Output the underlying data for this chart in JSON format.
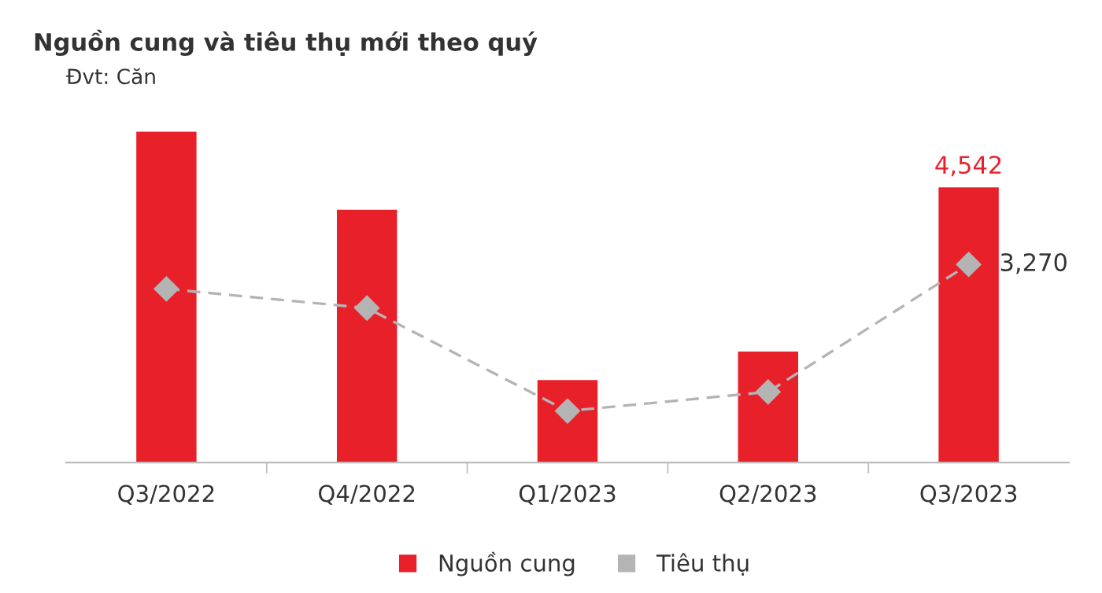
{
  "chart_data": {
    "type": "bar",
    "title": "Nguồn cung và tiêu thụ mới theo quý",
    "subtitle": "Đvt: Căn",
    "categories": [
      "Q3/2022",
      "Q4/2022",
      "Q1/2023",
      "Q2/2023",
      "Q3/2023"
    ],
    "legend": "bottom",
    "grid": false,
    "tick_labels": "x",
    "series": [
      {
        "name": "Nguồn cung",
        "color": "#e8202a",
        "values": [
          5457,
          4172,
          1362,
          1830,
          4542
        ],
        "value_labels": [
          null,
          null,
          null,
          null,
          "4,542"
        ]
      },
      {
        "name": "Tiêu thụ",
        "type": "line",
        "color": "#b4b4b4",
        "marker": "diamond",
        "line_style": "dashed",
        "values": [
          2865,
          2549,
          850,
          1165,
          3270
        ],
        "value_labels": [
          null,
          null,
          null,
          null,
          "3,270"
        ]
      }
    ]
  }
}
